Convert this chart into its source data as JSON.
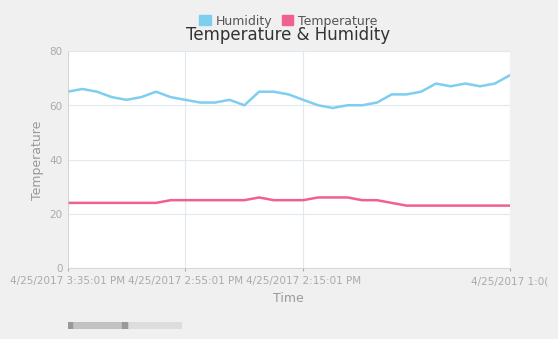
{
  "title": "Temperature & Humidity",
  "xlabel": "Time",
  "ylabel": "Temperature",
  "ylim": [
    0,
    80
  ],
  "yticks": [
    0,
    20,
    40,
    60,
    80
  ],
  "legend_labels": [
    "Humidity",
    "Temperature"
  ],
  "humidity_color": "#7ecef0",
  "temperature_color": "#f06090",
  "background_color": "#ffffff",
  "grid_color": "#e0e8f0",
  "xtick_labels": [
    "4/25/2017 3:35:01 PM",
    "4/25/2017 2:55:01 PM",
    "4/25/2017 2:15:01 PM",
    "4/25/2017 1:0("
  ],
  "humidity_x": [
    0,
    1,
    2,
    3,
    4,
    5,
    6,
    7,
    8,
    9,
    10,
    11,
    12,
    13,
    14,
    15,
    16,
    17,
    18,
    19,
    20,
    21,
    22,
    23,
    24,
    25,
    26,
    27,
    28,
    29,
    30
  ],
  "humidity_y": [
    65,
    66,
    65,
    63,
    62,
    63,
    65,
    63,
    62,
    61,
    61,
    62,
    60,
    65,
    65,
    64,
    62,
    60,
    59,
    60,
    60,
    61,
    64,
    64,
    65,
    68,
    67,
    68,
    67,
    68,
    71
  ],
  "temperature_x": [
    0,
    1,
    2,
    3,
    4,
    5,
    6,
    7,
    8,
    9,
    10,
    11,
    12,
    13,
    14,
    15,
    16,
    17,
    18,
    19,
    20,
    21,
    22,
    23,
    24,
    25,
    26,
    27,
    28,
    29,
    30
  ],
  "temperature_y": [
    24,
    24,
    24,
    24,
    24,
    24,
    24,
    25,
    25,
    25,
    25,
    25,
    25,
    26,
    25,
    25,
    25,
    26,
    26,
    26,
    25,
    25,
    24,
    23,
    23,
    23,
    23,
    23,
    23,
    23,
    23
  ],
  "title_fontsize": 12,
  "label_fontsize": 9,
  "tick_fontsize": 7.5,
  "legend_fontsize": 9,
  "line_width": 1.8,
  "fig_bg": "#f0f0f0",
  "spine_color": "#cccccc"
}
